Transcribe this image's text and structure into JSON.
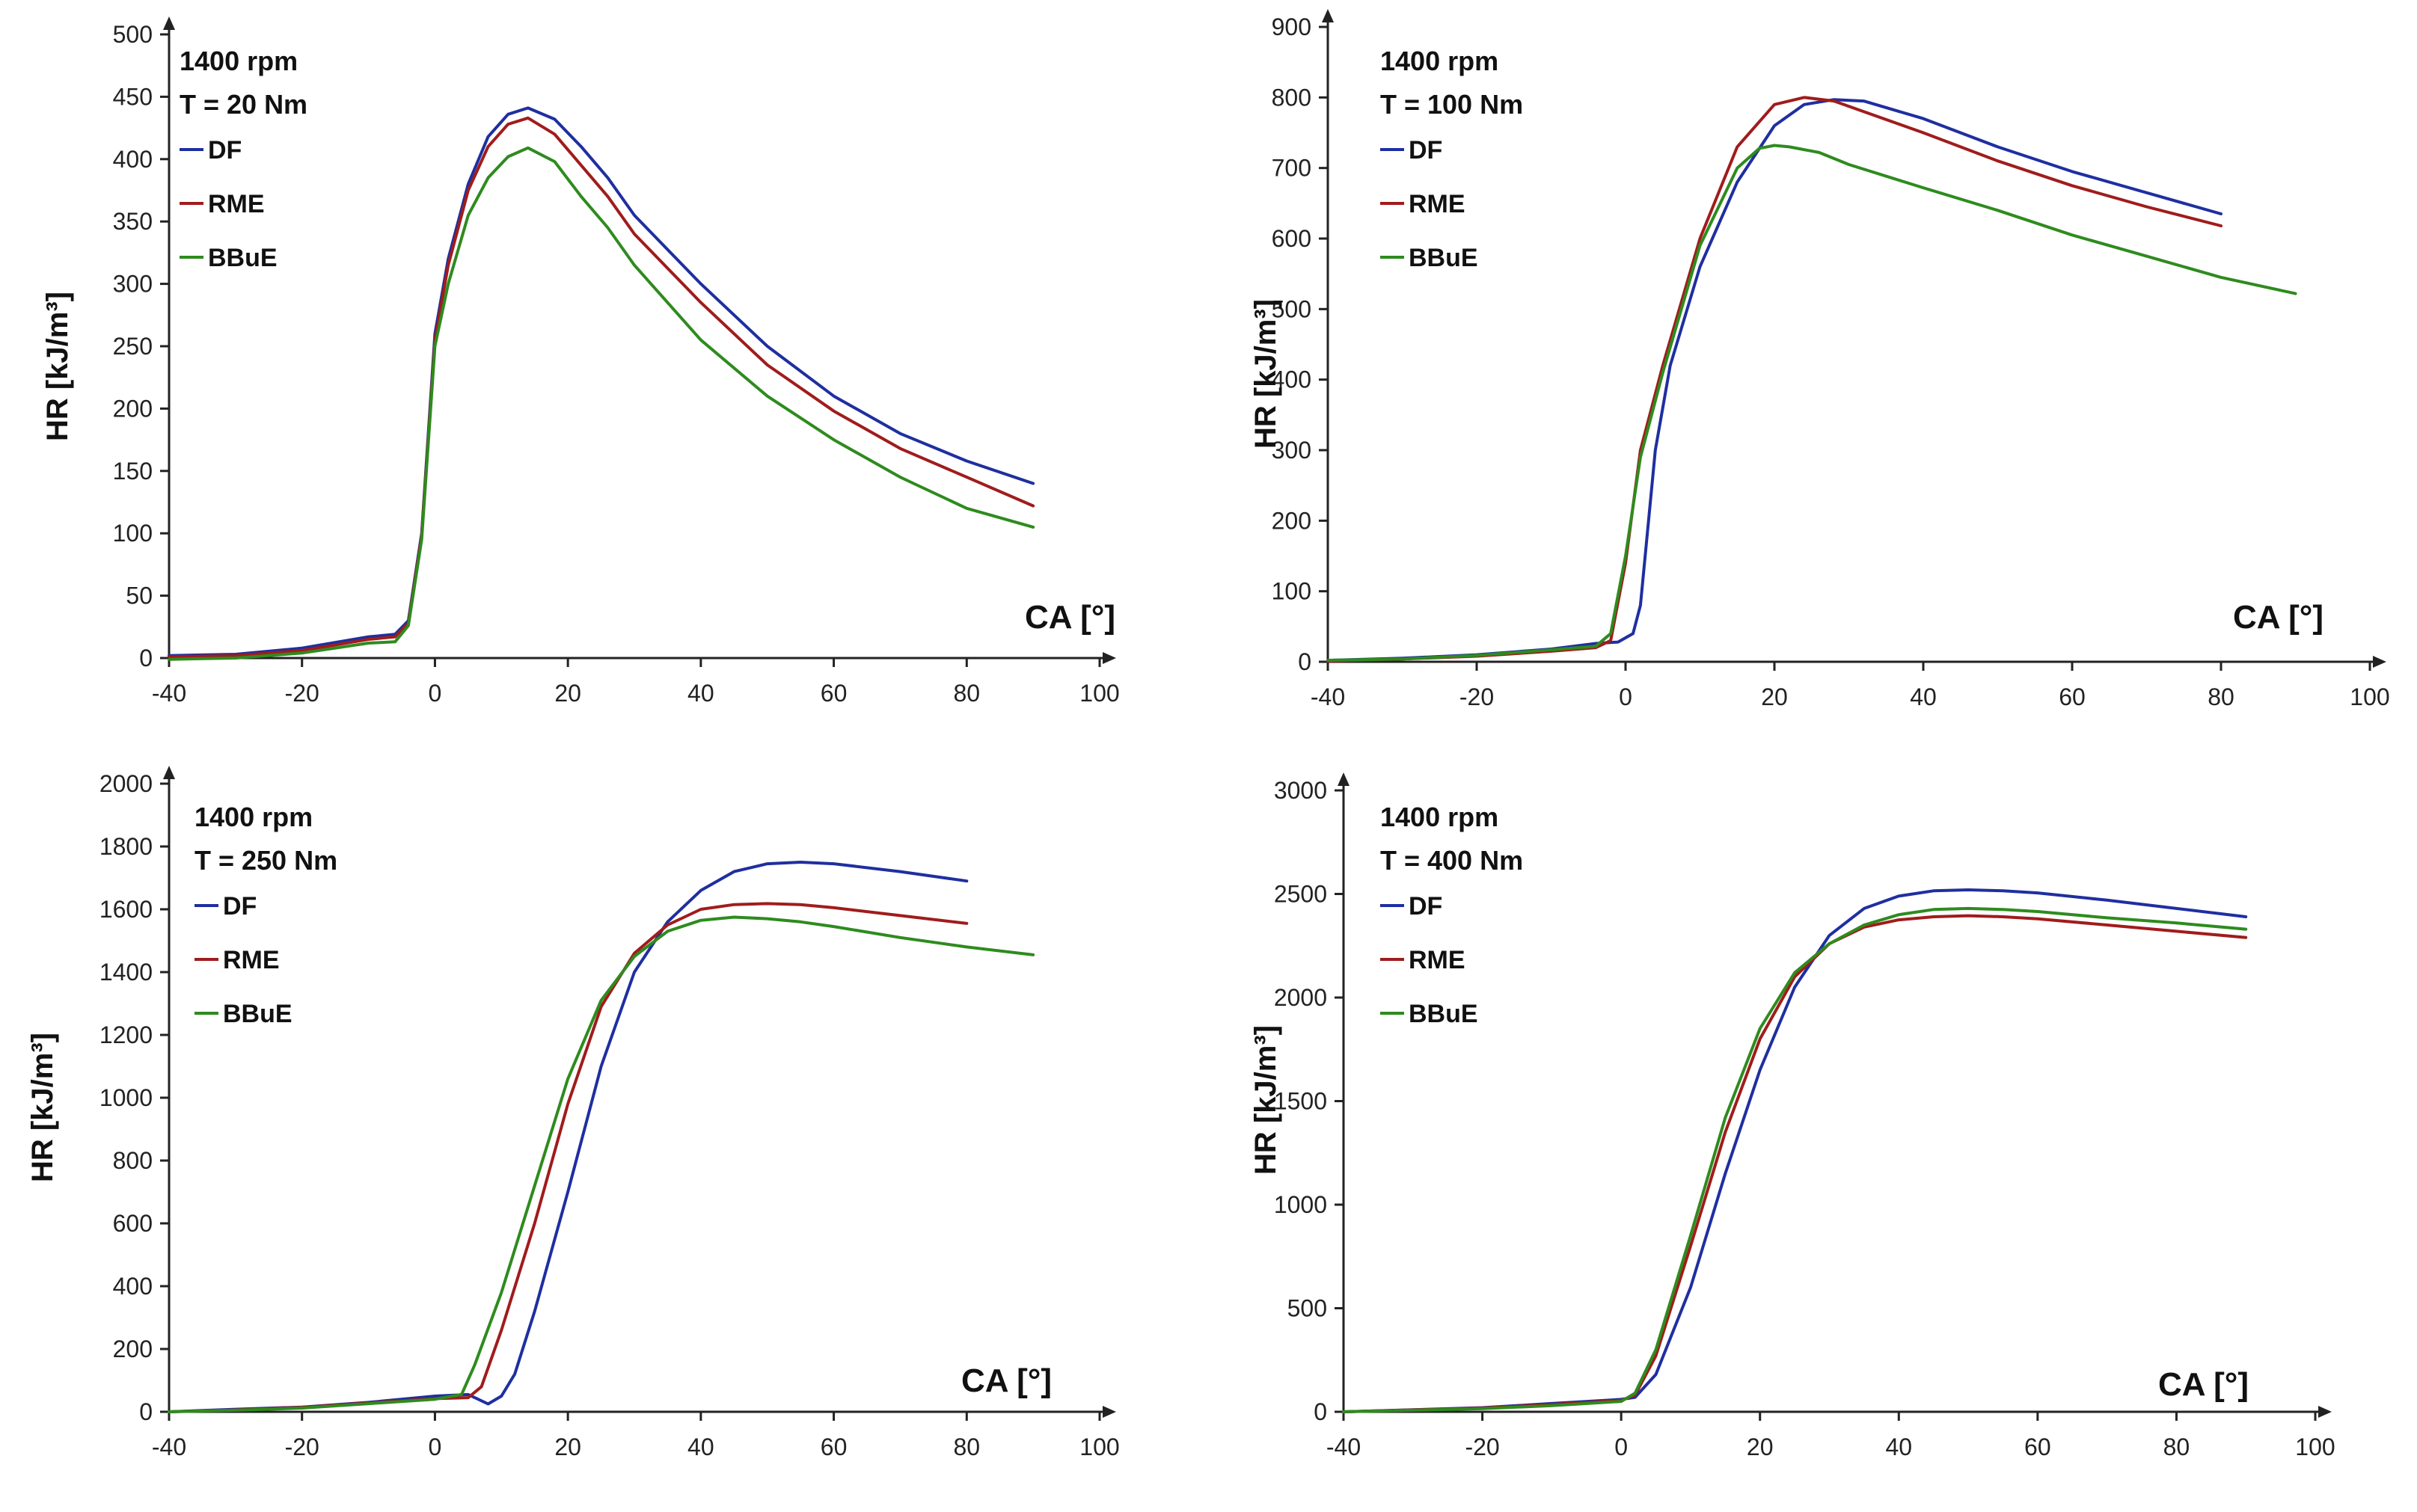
{
  "chart_data": [
    {
      "type": "line",
      "annotation_speed": "1400 rpm",
      "annotation_torque": "T = 20 Nm",
      "xlabel": "CA [°]",
      "ylabel": "HR [kJ/m³]",
      "xlim": [
        -40,
        100
      ],
      "ylim": [
        0,
        500
      ],
      "xticks": [
        -40,
        -20,
        0,
        20,
        40,
        60,
        80,
        100
      ],
      "yticks": [
        0,
        50,
        100,
        150,
        200,
        250,
        300,
        350,
        400,
        450,
        500
      ],
      "legend": [
        "DF",
        "RME",
        "BBuE"
      ],
      "series": [
        {
          "name": "DF",
          "color": "#1f2fa0",
          "x": [
            -40,
            -30,
            -20,
            -10,
            -6,
            -4,
            -2,
            0,
            2,
            5,
            8,
            11,
            14,
            18,
            22,
            26,
            30,
            40,
            50,
            60,
            70,
            80,
            90
          ],
          "y": [
            2,
            3,
            8,
            17,
            19,
            30,
            100,
            260,
            320,
            380,
            418,
            436,
            441,
            432,
            410,
            385,
            355,
            300,
            250,
            210,
            180,
            158,
            140
          ]
        },
        {
          "name": "RME",
          "color": "#a01c1c",
          "x": [
            -40,
            -30,
            -20,
            -10,
            -6,
            -4,
            -2,
            0,
            2,
            5,
            8,
            11,
            14,
            18,
            22,
            26,
            30,
            40,
            50,
            60,
            70,
            80,
            90
          ],
          "y": [
            1,
            2,
            6,
            15,
            17,
            28,
            98,
            255,
            315,
            375,
            410,
            428,
            433,
            420,
            395,
            370,
            340,
            285,
            235,
            198,
            168,
            145,
            122
          ]
        },
        {
          "name": "BBuE",
          "color": "#2e8b1e",
          "x": [
            -40,
            -30,
            -20,
            -10,
            -6,
            -4,
            -2,
            0,
            2,
            5,
            8,
            11,
            14,
            18,
            22,
            26,
            30,
            40,
            50,
            60,
            70,
            72,
            80,
            90
          ],
          "y": [
            -1,
            0,
            4,
            12,
            13,
            26,
            95,
            250,
            300,
            355,
            385,
            402,
            409,
            398,
            370,
            345,
            315,
            255,
            210,
            175,
            145,
            140,
            120,
            105
          ]
        }
      ]
    },
    {
      "type": "line",
      "annotation_speed": "1400 rpm",
      "annotation_torque": "T = 100 Nm",
      "xlabel": "CA [°]",
      "ylabel": "HR [kJ/m³]",
      "xlim": [
        -40,
        100
      ],
      "ylim": [
        0,
        900
      ],
      "xticks": [
        -40,
        -20,
        0,
        20,
        40,
        60,
        80,
        100
      ],
      "yticks": [
        0,
        100,
        200,
        300,
        400,
        500,
        600,
        700,
        800,
        900
      ],
      "legend": [
        "DF",
        "RME",
        "BBuE"
      ],
      "series": [
        {
          "name": "DF",
          "color": "#1f2fa0",
          "x": [
            -40,
            -30,
            -20,
            -10,
            -4,
            -1,
            1,
            2,
            4,
            6,
            10,
            15,
            20,
            24,
            28,
            32,
            40,
            50,
            60,
            70,
            80
          ],
          "y": [
            2,
            5,
            10,
            18,
            26,
            28,
            40,
            80,
            300,
            420,
            560,
            680,
            760,
            790,
            797,
            795,
            770,
            730,
            695,
            665,
            635
          ]
        },
        {
          "name": "RME",
          "color": "#a01c1c",
          "x": [
            -40,
            -30,
            -20,
            -10,
            -4,
            -2,
            0,
            2,
            5,
            10,
            15,
            20,
            24,
            28,
            32,
            40,
            50,
            60,
            70,
            80
          ],
          "y": [
            1,
            4,
            8,
            15,
            20,
            30,
            140,
            300,
            420,
            600,
            730,
            790,
            800,
            795,
            780,
            750,
            710,
            675,
            645,
            618
          ]
        },
        {
          "name": "BBuE",
          "color": "#2e8b1e",
          "x": [
            -40,
            -30,
            -20,
            -10,
            -4,
            -2,
            0,
            2,
            5,
            10,
            15,
            18,
            20,
            22,
            26,
            30,
            40,
            50,
            60,
            70,
            80,
            90
          ],
          "y": [
            2,
            4,
            9,
            17,
            22,
            40,
            150,
            290,
            410,
            590,
            700,
            728,
            732,
            730,
            722,
            705,
            672,
            640,
            605,
            575,
            545,
            522
          ]
        }
      ]
    },
    {
      "type": "line",
      "annotation_speed": "1400 rpm",
      "annotation_torque": "T = 250 Nm",
      "xlabel": "CA [°]",
      "ylabel": "HR [kJ/m³]",
      "xlim": [
        -40,
        100
      ],
      "ylim": [
        0,
        2000
      ],
      "xticks": [
        -40,
        -20,
        0,
        20,
        40,
        60,
        80,
        100
      ],
      "yticks": [
        0,
        200,
        400,
        600,
        800,
        1000,
        1200,
        1400,
        1600,
        1800,
        2000
      ],
      "legend": [
        "DF",
        "RME",
        "BBuE"
      ],
      "series": [
        {
          "name": "DF",
          "color": "#1f2fa0",
          "x": [
            -40,
            -30,
            -20,
            -10,
            0,
            5,
            8,
            10,
            12,
            15,
            20,
            25,
            30,
            35,
            40,
            45,
            50,
            55,
            60,
            70,
            80
          ],
          "y": [
            0,
            8,
            15,
            30,
            50,
            55,
            25,
            50,
            120,
            320,
            700,
            1100,
            1400,
            1560,
            1660,
            1720,
            1745,
            1750,
            1745,
            1720,
            1690
          ]
        },
        {
          "name": "RME",
          "color": "#a01c1c",
          "x": [
            -40,
            -30,
            -20,
            -10,
            0,
            5,
            7,
            10,
            15,
            20,
            25,
            30,
            35,
            40,
            45,
            50,
            55,
            60,
            70,
            80
          ],
          "y": [
            0,
            6,
            14,
            28,
            42,
            45,
            80,
            260,
            600,
            980,
            1290,
            1460,
            1550,
            1600,
            1615,
            1618,
            1615,
            1605,
            1580,
            1555
          ]
        },
        {
          "name": "BBuE",
          "color": "#2e8b1e",
          "x": [
            -40,
            -30,
            -20,
            -10,
            0,
            4,
            6,
            10,
            15,
            20,
            25,
            30,
            35,
            40,
            45,
            50,
            55,
            60,
            70,
            80,
            90
          ],
          "y": [
            0,
            5,
            12,
            26,
            40,
            55,
            150,
            380,
            720,
            1060,
            1310,
            1450,
            1530,
            1565,
            1575,
            1570,
            1560,
            1545,
            1510,
            1480,
            1455
          ]
        }
      ]
    },
    {
      "type": "line",
      "annotation_speed": "1400 rpm",
      "annotation_torque": "T = 400 Nm",
      "xlabel": "CA [°]",
      "ylabel": "HR [kJ/m³]",
      "xlim": [
        -40,
        100
      ],
      "ylim": [
        0,
        3000
      ],
      "xticks": [
        -40,
        -20,
        0,
        20,
        40,
        60,
        80,
        100
      ],
      "yticks": [
        0,
        500,
        1000,
        1500,
        2000,
        2500,
        3000
      ],
      "legend": [
        "DF",
        "RME",
        "BBuE"
      ],
      "series": [
        {
          "name": "DF",
          "color": "#1f2fa0",
          "x": [
            -40,
            -20,
            -10,
            0,
            2,
            5,
            10,
            15,
            20,
            25,
            30,
            35,
            40,
            45,
            50,
            55,
            60,
            70,
            80,
            90
          ],
          "y": [
            0,
            20,
            40,
            60,
            70,
            180,
            600,
            1150,
            1650,
            2050,
            2300,
            2430,
            2490,
            2515,
            2520,
            2515,
            2505,
            2470,
            2430,
            2390
          ]
        },
        {
          "name": "RME",
          "color": "#a01c1c",
          "x": [
            -40,
            -20,
            -10,
            0,
            2,
            5,
            10,
            15,
            20,
            25,
            30,
            35,
            40,
            45,
            50,
            55,
            60,
            70,
            80,
            90
          ],
          "y": [
            0,
            18,
            35,
            55,
            80,
            270,
            800,
            1350,
            1800,
            2100,
            2260,
            2340,
            2375,
            2390,
            2395,
            2390,
            2380,
            2350,
            2320,
            2290
          ]
        },
        {
          "name": "BBuE",
          "color": "#2e8b1e",
          "x": [
            -40,
            -20,
            -10,
            0,
            2,
            5,
            10,
            15,
            20,
            25,
            30,
            35,
            40,
            45,
            50,
            55,
            60,
            70,
            80,
            90
          ],
          "y": [
            0,
            15,
            30,
            50,
            90,
            300,
            850,
            1420,
            1850,
            2120,
            2260,
            2350,
            2400,
            2425,
            2430,
            2425,
            2415,
            2385,
            2360,
            2330
          ]
        }
      ]
    }
  ]
}
